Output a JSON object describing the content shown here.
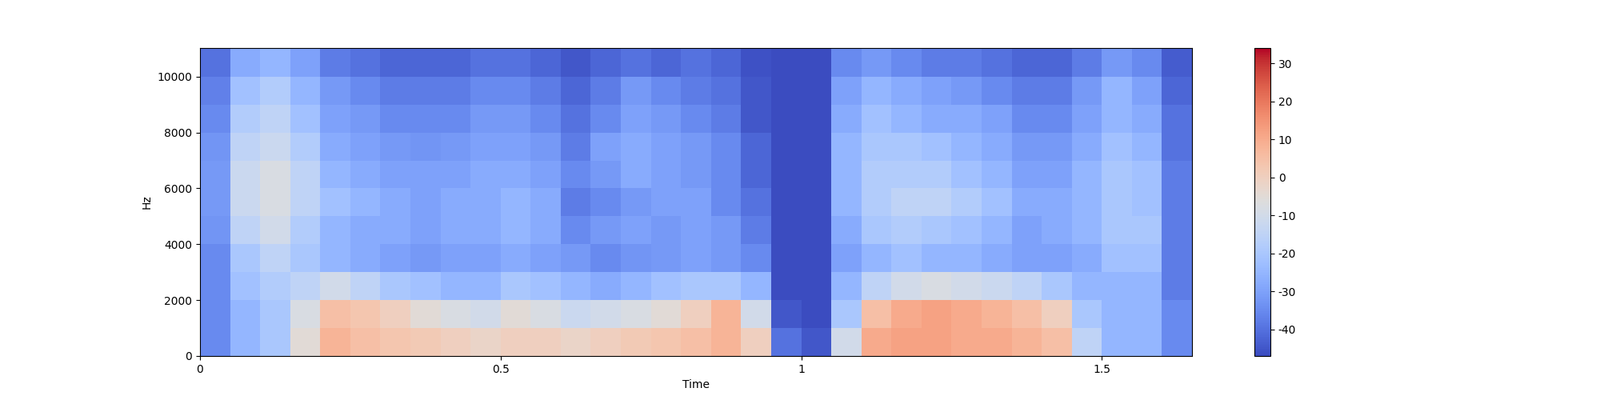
{
  "chart_data": {
    "type": "heatmap",
    "x_label": "Time",
    "y_label": "Hz",
    "color": "coolwarm",
    "xlim": [
      0,
      1.65
    ],
    "ylim": [
      0,
      11025
    ],
    "xticks": [
      0,
      0.5,
      1,
      1.5
    ],
    "yticks": [
      0,
      2000,
      4000,
      6000,
      8000,
      10000
    ],
    "time_edges": [
      0,
      0.05,
      0.1,
      0.15,
      0.2,
      0.25,
      0.3,
      0.35,
      0.4,
      0.45,
      0.5,
      0.55,
      0.6,
      0.65,
      0.7,
      0.75,
      0.8,
      0.85,
      0.9,
      0.95,
      1.0,
      1.05,
      1.1,
      1.15,
      1.2,
      1.25,
      1.3,
      1.35,
      1.4,
      1.45,
      1.5,
      1.55,
      1.6,
      1.65
    ],
    "freq_edges": [
      0,
      1000,
      2000,
      3000,
      4000,
      5000,
      6000,
      7000,
      8000,
      9000,
      10000,
      11025
    ],
    "cells": [
      [
        -35,
        -25,
        -20,
        -5,
        8,
        5,
        3,
        2,
        0,
        -2,
        0,
        0,
        -2,
        0,
        2,
        3,
        5,
        8,
        0,
        -40,
        -45,
        -10,
        10,
        12,
        12,
        10,
        10,
        8,
        5,
        -15,
        -25,
        -25,
        -35
      ],
      [
        -35,
        -25,
        -20,
        -8,
        5,
        3,
        0,
        -5,
        -8,
        -10,
        -5,
        -8,
        -12,
        -10,
        -8,
        -5,
        0,
        8,
        -10,
        -45,
        -47,
        -20,
        5,
        10,
        12,
        10,
        8,
        5,
        0,
        -20,
        -25,
        -25,
        -35
      ],
      [
        -35,
        -22,
        -18,
        -15,
        -10,
        -15,
        -20,
        -22,
        -25,
        -25,
        -20,
        -22,
        -25,
        -28,
        -25,
        -22,
        -20,
        -20,
        -25,
        -47,
        -47,
        -25,
        -15,
        -10,
        -8,
        -10,
        -12,
        -15,
        -20,
        -25,
        -25,
        -25,
        -38
      ],
      [
        -35,
        -20,
        -15,
        -20,
        -25,
        -28,
        -30,
        -32,
        -30,
        -30,
        -28,
        -30,
        -32,
        -35,
        -33,
        -32,
        -30,
        -32,
        -35,
        -47,
        -47,
        -30,
        -25,
        -22,
        -25,
        -25,
        -28,
        -30,
        -30,
        -28,
        -22,
        -22,
        -38
      ],
      [
        -33,
        -15,
        -10,
        -18,
        -25,
        -28,
        -28,
        -30,
        -28,
        -28,
        -25,
        -28,
        -35,
        -32,
        -30,
        -32,
        -30,
        -32,
        -38,
        -47,
        -47,
        -28,
        -20,
        -18,
        -20,
        -22,
        -25,
        -30,
        -28,
        -25,
        -20,
        -20,
        -38
      ],
      [
        -32,
        -12,
        -8,
        -15,
        -22,
        -25,
        -28,
        -30,
        -28,
        -28,
        -25,
        -28,
        -38,
        -35,
        -32,
        -30,
        -30,
        -35,
        -40,
        -47,
        -47,
        -25,
        -18,
        -15,
        -15,
        -18,
        -22,
        -28,
        -28,
        -25,
        -20,
        -22,
        -38
      ],
      [
        -32,
        -12,
        -8,
        -15,
        -25,
        -28,
        -30,
        -30,
        -30,
        -28,
        -28,
        -30,
        -35,
        -32,
        -28,
        -30,
        -32,
        -35,
        -42,
        -47,
        -47,
        -25,
        -18,
        -18,
        -18,
        -22,
        -25,
        -30,
        -30,
        -25,
        -20,
        -22,
        -38
      ],
      [
        -33,
        -15,
        -12,
        -18,
        -28,
        -30,
        -32,
        -33,
        -32,
        -30,
        -30,
        -32,
        -38,
        -30,
        -28,
        -30,
        -32,
        -35,
        -42,
        -47,
        -47,
        -25,
        -20,
        -20,
        -22,
        -25,
        -28,
        -32,
        -32,
        -28,
        -22,
        -25,
        -40
      ],
      [
        -35,
        -18,
        -15,
        -22,
        -30,
        -32,
        -35,
        -35,
        -35,
        -32,
        -32,
        -35,
        -40,
        -35,
        -30,
        -32,
        -35,
        -38,
        -45,
        -47,
        -47,
        -28,
        -22,
        -25,
        -28,
        -28,
        -30,
        -35,
        -35,
        -30,
        -25,
        -28,
        -40
      ],
      [
        -37,
        -22,
        -18,
        -25,
        -32,
        -35,
        -38,
        -38,
        -38,
        -35,
        -35,
        -38,
        -42,
        -38,
        -32,
        -35,
        -38,
        -40,
        -45,
        -47,
        -47,
        -30,
        -25,
        -28,
        -30,
        -32,
        -35,
        -38,
        -38,
        -32,
        -25,
        -30,
        -42
      ],
      [
        -40,
        -28,
        -25,
        -30,
        -38,
        -40,
        -42,
        -42,
        -42,
        -40,
        -40,
        -42,
        -45,
        -42,
        -40,
        -42,
        -40,
        -42,
        -46,
        -47,
        -47,
        -35,
        -32,
        -35,
        -38,
        -38,
        -40,
        -42,
        -42,
        -38,
        -32,
        -35,
        -44
      ]
    ],
    "colorbar_range": [
      -47,
      34
    ],
    "colorbar_ticks": [
      -40,
      -30,
      -20,
      -10,
      0,
      10,
      20,
      30
    ]
  }
}
